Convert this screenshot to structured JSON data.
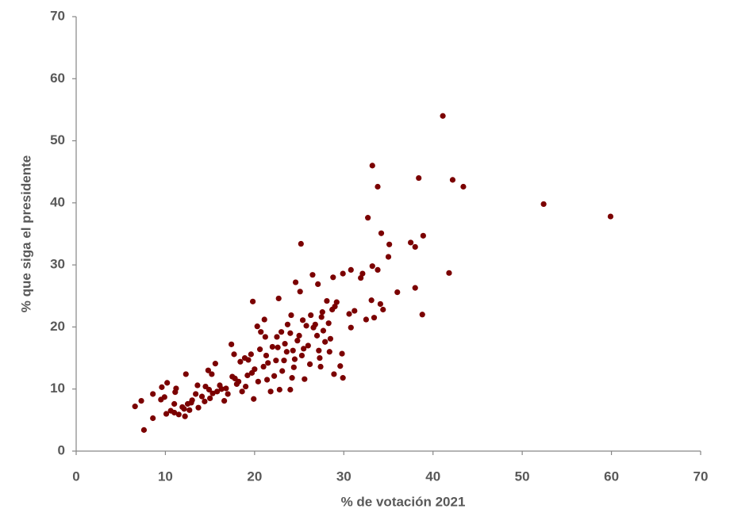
{
  "chart_data": {
    "type": "scatter",
    "x_label": "% de votación 2021",
    "y_label": "% que siga el presidente",
    "color": "#7b0000",
    "xlim": [
      0,
      70
    ],
    "xticks": [
      0,
      10,
      20,
      30,
      40,
      50,
      60,
      70
    ],
    "ylim": [
      0,
      70
    ],
    "yticks": [
      0,
      10,
      20,
      30,
      40,
      50,
      60,
      70
    ],
    "grid": false,
    "x": [
      41.1,
      33.2,
      38.4,
      42.2,
      43.4,
      33.8,
      52.4,
      59.9,
      32.7,
      34.2,
      38.9,
      25.2,
      37.5,
      35.1,
      38.0,
      35.0,
      30.8,
      33.2,
      33.8,
      32.1,
      41.8,
      26.5,
      28.8,
      29.9,
      31.9,
      24.6,
      27.1,
      38.0,
      36.0,
      25.1,
      22.7,
      19.8,
      33.1,
      34.1,
      29.2,
      31.2,
      38.8,
      34.4,
      32.5,
      33.4,
      30.6,
      30.8,
      21.1,
      29.8,
      29.6,
      29.9,
      28.9,
      27.4,
      17.4,
      12.3,
      7.6,
      6.6,
      7.3,
      8.6,
      8.6,
      9.6,
      10.2,
      9.5,
      10.1,
      11.0,
      11.5,
      12.2,
      12.7,
      11.9,
      11.1,
      11.2,
      12.5,
      13.0,
      13.7,
      14.1,
      14.5,
      14.8,
      15.2,
      15.6,
      15.3,
      16.1,
      16.6,
      17.0,
      17.8,
      17.7,
      18.4,
      18.9,
      19.3,
      19.6,
      19.2,
      19.0,
      18.6,
      19.9,
      20.4,
      20.6,
      20.7,
      21.2,
      21.3,
      21.0,
      21.4,
      21.8,
      22.2,
      22.4,
      22.6,
      22.5,
      23.0,
      23.4,
      23.3,
      23.1,
      22.8,
      23.7,
      24.1,
      24.0,
      24.3,
      24.5,
      24.2,
      24.0,
      25.0,
      25.4,
      25.3,
      25.6,
      25.8,
      26.0,
      26.3,
      26.2,
      26.8,
      27.0,
      27.2,
      27.3,
      27.5,
      27.6,
      27.7,
      27.9,
      28.1,
      28.3,
      28.5,
      28.4,
      29.0,
      28.7,
      20.3,
      20.0,
      19.7,
      18.2,
      17.5,
      16.3,
      15.8,
      15.0,
      14.4,
      13.4,
      12.9,
      12.1,
      10.6,
      9.9,
      11.0,
      13.6,
      14.9,
      16.8,
      18.0,
      21.5,
      22.0,
      23.6,
      24.8,
      26.6,
      25.5,
      24.4
    ],
    "values": [
      54.0,
      46.0,
      44.0,
      43.7,
      42.6,
      42.6,
      39.8,
      37.8,
      37.6,
      35.1,
      34.7,
      33.4,
      33.6,
      33.3,
      32.9,
      31.3,
      29.2,
      29.8,
      29.2,
      28.6,
      28.7,
      28.4,
      28.0,
      28.6,
      27.9,
      27.2,
      26.9,
      26.3,
      25.6,
      25.7,
      24.6,
      24.1,
      24.3,
      23.7,
      24.0,
      22.6,
      22.0,
      22.8,
      21.2,
      21.5,
      22.1,
      19.9,
      21.2,
      15.7,
      13.7,
      11.8,
      12.4,
      13.6,
      17.2,
      12.4,
      3.4,
      7.2,
      8.1,
      5.3,
      9.2,
      10.3,
      11.0,
      8.3,
      6.0,
      6.2,
      5.9,
      5.6,
      6.6,
      7.1,
      9.5,
      10.1,
      7.6,
      8.2,
      7.0,
      8.8,
      10.4,
      13.0,
      12.4,
      14.1,
      9.3,
      10.6,
      8.1,
      9.2,
      11.7,
      15.6,
      14.4,
      15.0,
      14.7,
      15.6,
      12.2,
      10.4,
      9.6,
      8.4,
      11.2,
      16.4,
      19.2,
      18.4,
      15.4,
      13.6,
      11.5,
      9.6,
      12.1,
      14.6,
      16.7,
      18.4,
      19.2,
      17.3,
      14.6,
      12.9,
      9.9,
      20.4,
      21.9,
      19.0,
      16.2,
      14.8,
      11.8,
      9.9,
      18.6,
      21.1,
      15.4,
      11.6,
      20.2,
      17.0,
      21.9,
      14.0,
      20.4,
      18.6,
      16.2,
      15.0,
      21.6,
      22.4,
      19.4,
      17.6,
      24.2,
      20.6,
      18.1,
      16.0,
      23.3,
      22.8,
      20.1,
      13.2,
      12.6,
      11.2,
      12.0,
      10.0,
      9.6,
      8.5,
      8.0,
      9.2,
      7.8,
      6.8,
      6.5,
      8.7,
      7.6,
      10.6,
      9.9,
      10.1,
      10.8,
      14.2,
      16.8,
      16.0,
      17.8,
      19.9,
      16.5,
      13.5
    ]
  }
}
